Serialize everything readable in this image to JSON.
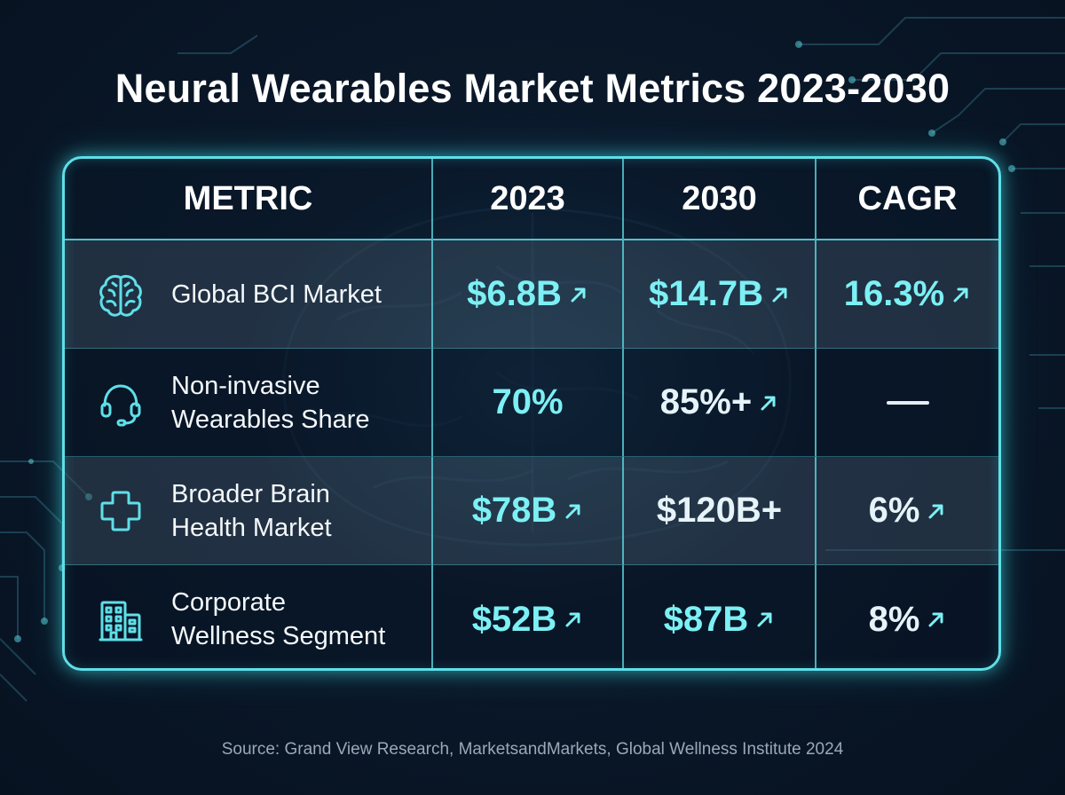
{
  "title": "Neural Wearables Market Metrics 2023-2030",
  "source": "Source: Grand View Research, MarketsandMarkets, Global Wellness Institute 2024",
  "colors": {
    "accent": "#5fdfe8",
    "value": "#7cf0f4",
    "background": "#0a1829"
  },
  "chart_data": {
    "type": "table",
    "columns": [
      "METRIC",
      "2023",
      "2030",
      "CAGR"
    ],
    "rows": [
      {
        "icon": "brain-icon",
        "metric": [
          "Global BCI Market"
        ],
        "v2023": "$6.8B",
        "v2023_up": true,
        "v2030": "$14.7B",
        "v2030_up": true,
        "cagr": "16.3%",
        "cagr_up": true
      },
      {
        "icon": "headset-icon",
        "metric": [
          "Non-invasive",
          "Wearables Share"
        ],
        "v2023": "70%",
        "v2023_up": false,
        "v2030": "85%+",
        "v2030_up": true,
        "cagr": "—",
        "cagr_up": false
      },
      {
        "icon": "medical-cross-icon",
        "metric": [
          "Broader Brain",
          "Health Market"
        ],
        "v2023": "$78B",
        "v2023_up": true,
        "v2030": "$120B+",
        "v2030_up": false,
        "cagr": "6%",
        "cagr_up": true
      },
      {
        "icon": "office-building-icon",
        "metric": [
          "Corporate",
          "Wellness Segment"
        ],
        "v2023": "$52B",
        "v2023_up": true,
        "v2030": "$87B",
        "v2030_up": true,
        "cagr": "8%",
        "cagr_up": true
      }
    ]
  }
}
